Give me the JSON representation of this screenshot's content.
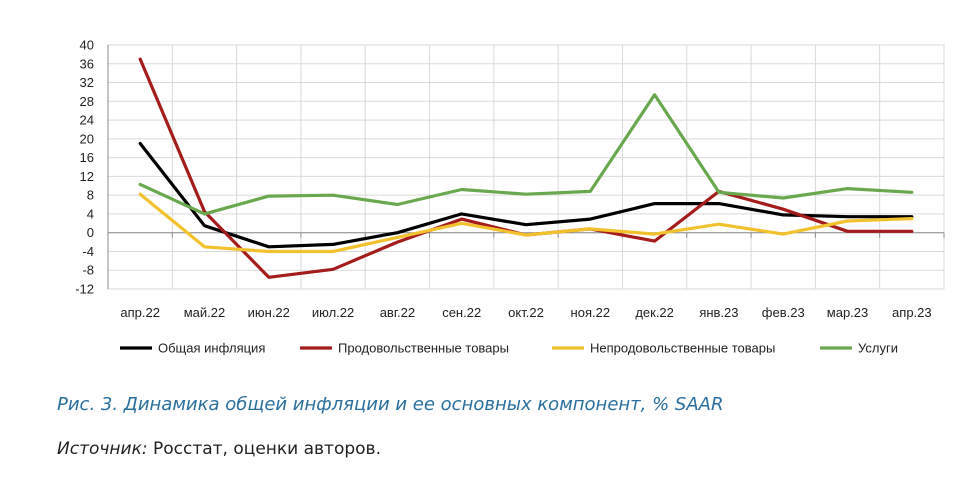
{
  "chart_data": {
    "type": "line",
    "categories": [
      "апр.22",
      "май.22",
      "июн.22",
      "июл.22",
      "авг.22",
      "сен.22",
      "окт.22",
      "ноя.22",
      "дек.22",
      "янв.23",
      "фев.23",
      "мар.23",
      "апр.23"
    ],
    "ylim": [
      -12,
      40
    ],
    "yticks": [
      -12,
      -8,
      -4,
      0,
      4,
      8,
      12,
      16,
      20,
      24,
      28,
      32,
      36,
      40
    ],
    "grid": true,
    "legend_position": "bottom",
    "series": [
      {
        "name": "Общая инфляция",
        "color": "#000000",
        "values": [
          19,
          1.5,
          -3,
          -2.5,
          0,
          4,
          1.7,
          2.9,
          6.2,
          6.2,
          3.8,
          3.4,
          3.4
        ]
      },
      {
        "name": "Продовольственные товары",
        "color": "#a51c1c",
        "values": [
          37,
          4.5,
          -9.5,
          -7.8,
          -2,
          2.9,
          -0.5,
          0.8,
          -1.8,
          8.8,
          5,
          0.3,
          0.3
        ]
      },
      {
        "name": "Непродовольственные товары",
        "color": "#f2c12e",
        "values": [
          8.2,
          -3,
          -4,
          -4,
          -1,
          2,
          -0.5,
          0.8,
          -0.3,
          1.8,
          -0.3,
          2.5,
          3
        ]
      },
      {
        "name": "Услуги",
        "color": "#6aa84f",
        "values": [
          10.3,
          4,
          7.8,
          8,
          6,
          9.2,
          8.2,
          8.8,
          29.4,
          8.6,
          7.4,
          9.4,
          8.6
        ]
      }
    ]
  },
  "caption": "Рис. 3. Динамика общей инфляции и ее основных компонент, % SAAR",
  "source": {
    "label": "Источник:",
    "text": " Росстат, оценки авторов."
  }
}
